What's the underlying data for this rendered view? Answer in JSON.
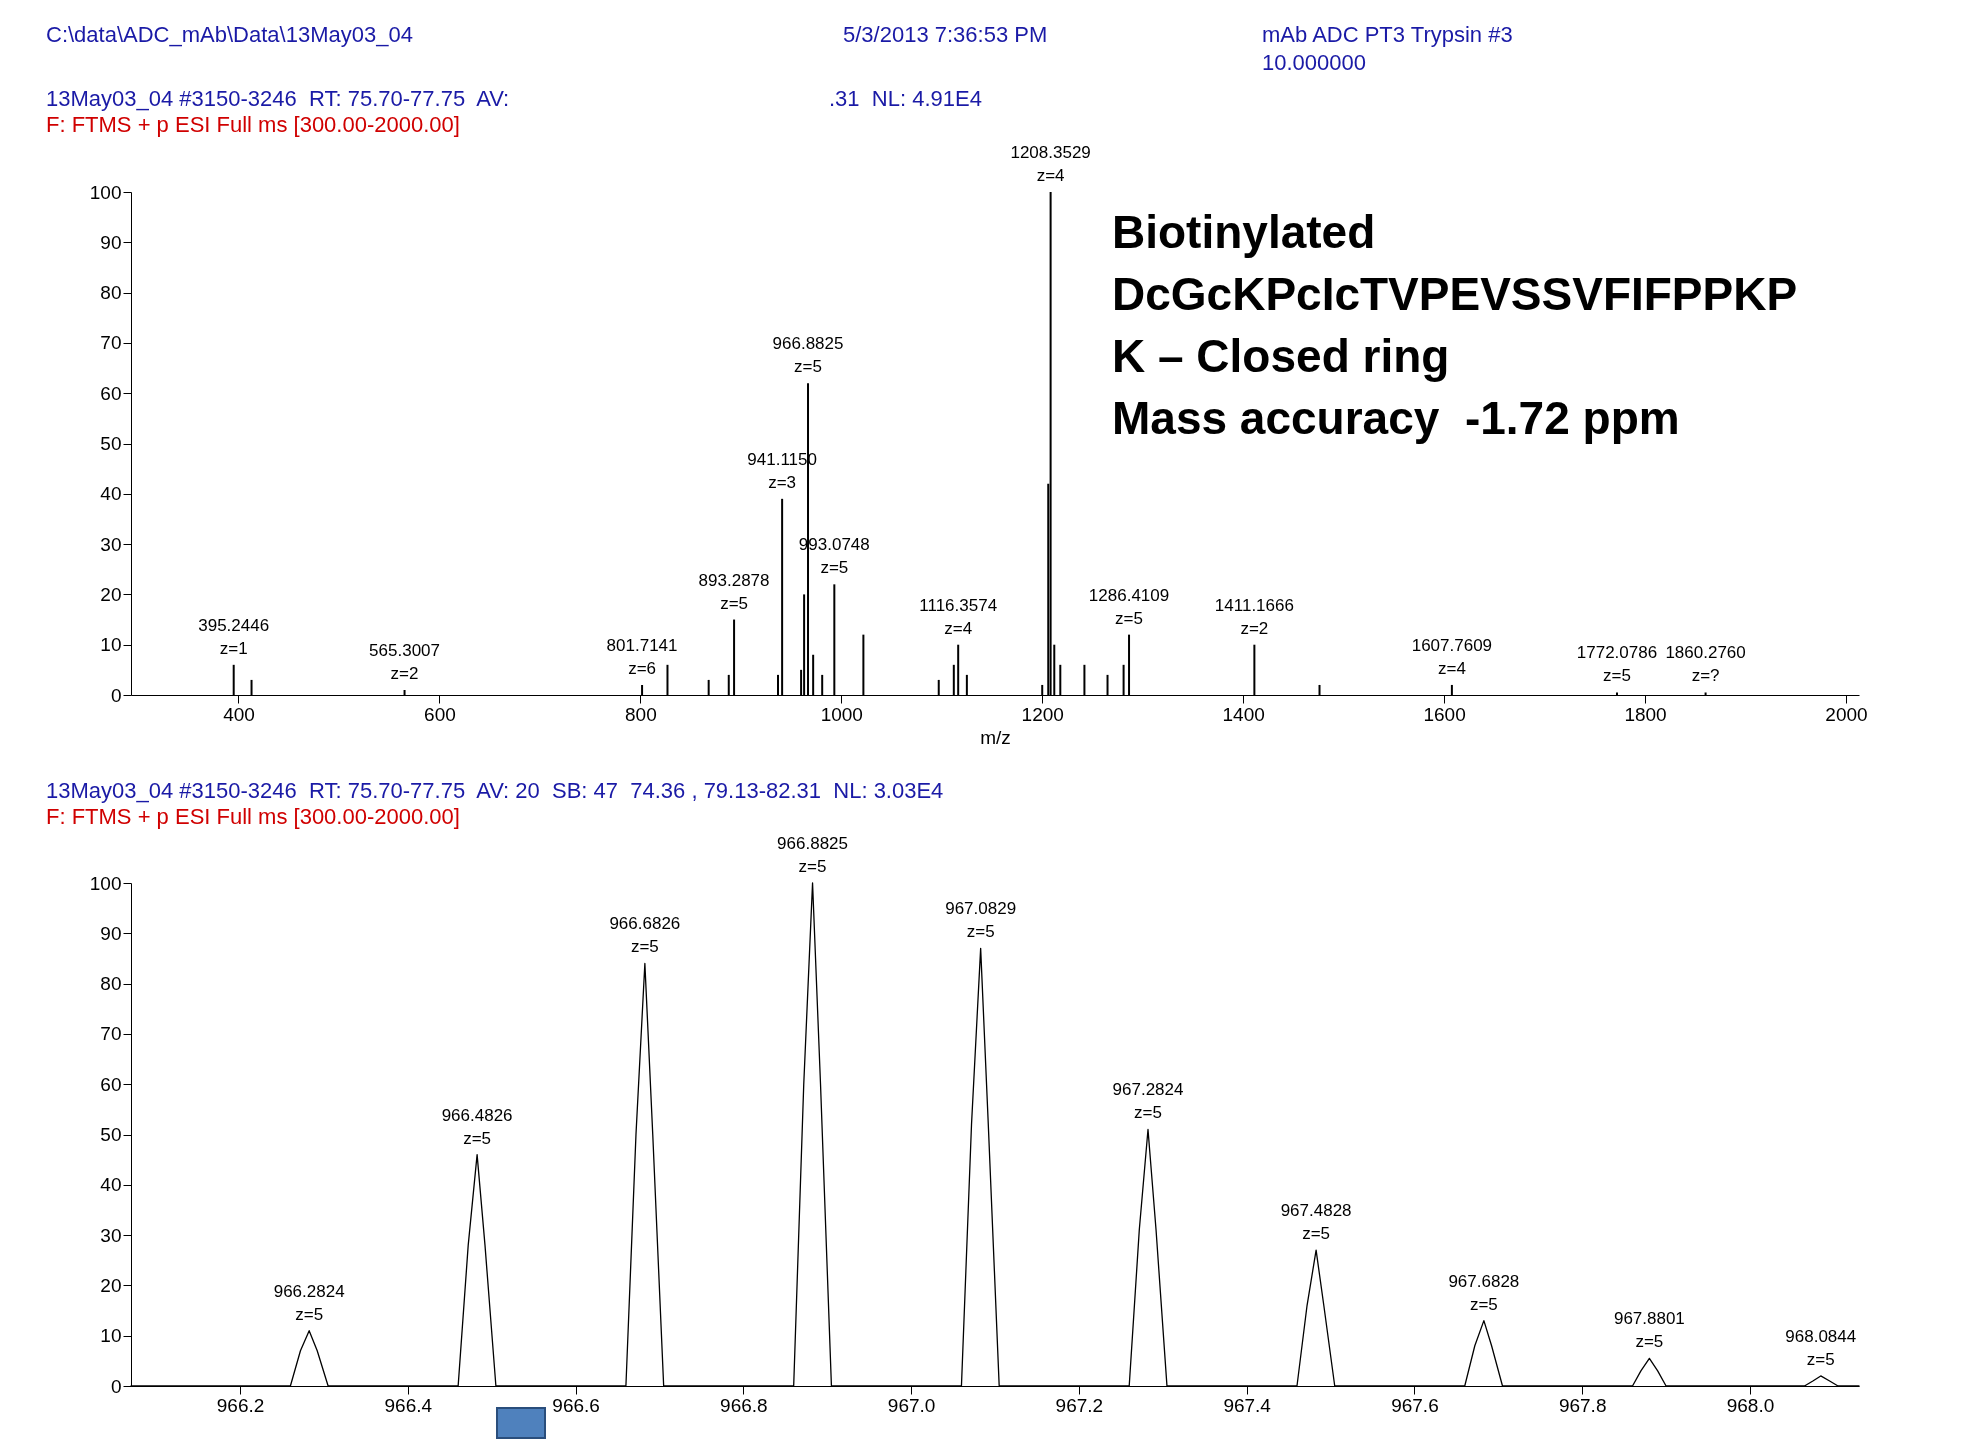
{
  "chart_data": [
    {
      "type": "bar",
      "title": "13May03_04 #3150-3246  RT: 75.70-77.75  AV:",
      "subtitle": "F: FTMS + p ESI Full ms [300.00-2000.00]",
      "xlabel": "m/z",
      "color": "#000000",
      "x": [
        395.2446,
        413,
        565.3007,
        801.7141,
        827,
        868,
        888,
        893.2878,
        937,
        941.115,
        960,
        963,
        966.8825,
        972,
        981,
        993.0748,
        1022,
        1097,
        1112,
        1116.3574,
        1125,
        1200,
        1206,
        1208.3529,
        1212,
        1218,
        1242,
        1265,
        1281,
        1286.4109,
        1411.1666,
        1476,
        1607.7609,
        1772.0786,
        1860.276
      ],
      "values": [
        6,
        3,
        1,
        2,
        6,
        3,
        4,
        15,
        4,
        39,
        5,
        20,
        62,
        8,
        4,
        22,
        12,
        3,
        6,
        10,
        4,
        2,
        42,
        100,
        10,
        6,
        6,
        4,
        6,
        12,
        10,
        2,
        2,
        0.5,
        0.5
      ],
      "xlim": [
        298,
        2008
      ],
      "xticks": [
        400,
        600,
        800,
        1000,
        1200,
        1400,
        1600,
        1800,
        2000
      ],
      "ylim": [
        0,
        100
      ],
      "yticks": [
        0,
        10,
        20,
        30,
        40,
        50,
        60,
        70,
        80,
        90,
        100
      ],
      "annotations": [
        "C:\\data\\ADC_mAb\\Data\\13May03_04",
        "5/3/2013 7:36:53 PM",
        "mAb ADC PT3 Trypsin #3",
        "10.000000",
        ".31  NL: 4.91E4",
        "Biotinylated",
        "DcGcKPcIcTVPEVSSVFIFPPKP",
        "K – Closed ring",
        "Mass accuracy  -1.72 ppm",
        {
          "text": "395.2446\nz=1",
          "x": 395.2446,
          "y": 6
        },
        {
          "text": "565.3007\nz=2",
          "x": 565.3007,
          "y": 1
        },
        {
          "text": "801.7141\nz=6",
          "x": 801.7141,
          "y": 2
        },
        {
          "text": "893.2878\nz=5",
          "x": 893.2878,
          "y": 15
        },
        {
          "text": "941.1150\nz=3",
          "x": 941.115,
          "y": 39
        },
        {
          "text": "966.8825\nz=5",
          "x": 966.8825,
          "y": 62
        },
        {
          "text": "993.0748\nz=5",
          "x": 993.0748,
          "y": 22
        },
        {
          "text": "1116.3574\nz=4",
          "x": 1116.3574,
          "y": 10
        },
        {
          "text": "1208.3529\nz=4",
          "x": 1208.3529,
          "y": 100
        },
        {
          "text": "1286.4109\nz=5",
          "x": 1286.4109,
          "y": 12
        },
        {
          "text": "1411.1666\nz=2",
          "x": 1411.1666,
          "y": 10
        },
        {
          "text": "1607.7609\nz=4",
          "x": 1607.7609,
          "y": 2
        },
        {
          "text": "1772.0786\nz=5",
          "x": 1772.0786,
          "y": 0.5
        },
        {
          "text": "1860.2760\nz=?",
          "x": 1860.276,
          "y": 0.5
        }
      ]
    },
    {
      "type": "line",
      "title": "13May03_04 #3150-3246  RT: 75.70-77.75  AV: 20  SB: 47  74.36 , 79.13-82.31  NL: 3.03E4",
      "subtitle": "F: FTMS + p ESI Full ms [300.00-2000.00]",
      "color": "#000000",
      "x": [
        966.07,
        966.26,
        966.272,
        966.2824,
        966.292,
        966.305,
        966.46,
        966.472,
        966.4826,
        966.492,
        966.505,
        966.66,
        966.672,
        966.6826,
        966.692,
        966.705,
        966.86,
        966.872,
        966.8825,
        966.892,
        966.905,
        967.06,
        967.072,
        967.0829,
        967.092,
        967.105,
        967.26,
        967.272,
        967.2824,
        967.292,
        967.305,
        967.46,
        967.472,
        967.4828,
        967.492,
        967.505,
        967.66,
        967.672,
        967.6828,
        967.692,
        967.705,
        967.86,
        967.87,
        967.8801,
        967.89,
        967.9,
        968.065,
        968.075,
        968.0844,
        968.095,
        968.105,
        968.13
      ],
      "values": [
        0,
        0,
        7,
        11,
        7,
        0,
        0,
        28,
        46,
        28,
        0,
        0,
        50,
        84,
        50,
        0,
        0,
        60,
        100,
        60,
        0,
        0,
        52,
        87,
        52,
        0,
        0,
        31,
        51,
        31,
        0,
        0,
        16,
        27,
        16,
        0,
        0,
        8,
        13,
        8,
        0,
        0,
        3,
        5.5,
        3,
        0,
        0,
        1,
        2,
        1,
        0,
        0
      ],
      "xlim": [
        966.07,
        968.13
      ],
      "xticks": [
        966.2,
        966.4,
        966.6,
        966.8,
        {
          "value": 967.0,
          "label": "967.0"
        },
        967.2,
        967.4,
        967.6,
        967.8,
        {
          "value": 968.0,
          "label": "968.0"
        }
      ],
      "ylim": [
        0,
        100
      ],
      "yticks": [
        0,
        10,
        20,
        30,
        40,
        50,
        60,
        70,
        80,
        90,
        100
      ],
      "annotations": [
        {
          "text": "966.2824\nz=5",
          "x": 966.2824,
          "y": 11
        },
        {
          "text": "966.4826\nz=5",
          "x": 966.4826,
          "y": 46
        },
        {
          "text": "966.6826\nz=5",
          "x": 966.6826,
          "y": 84
        },
        {
          "text": "966.8825\nz=5",
          "x": 966.8825,
          "y": 100
        },
        {
          "text": "967.0829\nz=5",
          "x": 967.0829,
          "y": 87
        },
        {
          "text": "967.2824\nz=5",
          "x": 967.2824,
          "y": 51
        },
        {
          "text": "967.4828\nz=5",
          "x": 967.4828,
          "y": 27
        },
        {
          "text": "967.6828\nz=5",
          "x": 967.6828,
          "y": 13
        },
        {
          "text": "967.8801\nz=5",
          "x": 967.8801,
          "y": 5.5
        },
        {
          "text": "968.0844\nz=5",
          "x": 968.0844,
          "y": 2
        }
      ]
    }
  ]
}
